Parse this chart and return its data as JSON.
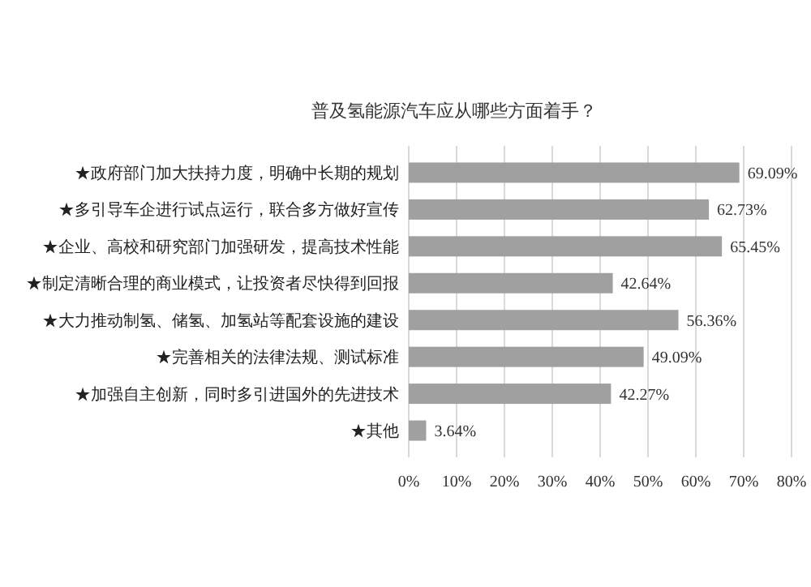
{
  "chart_data": {
    "type": "bar",
    "orientation": "horizontal",
    "title": "普及氢能源汽车应从哪些方面着手？",
    "categories": [
      "★政府部门加大扶持力度，明确中长期的规划",
      "★多引导车企进行试点运行，联合多方做好宣传",
      "★企业、高校和研究部门加强研发，提高技术性能",
      "★制定清晰合理的商业模式，让投资者尽快得到回报",
      "★大力推动制氢、储氢、加氢站等配套设施的建设",
      "★完善相关的法律法规、测试标准",
      "★加强自主创新，同时多引进国外的先进技术",
      "★其他"
    ],
    "values": [
      69.09,
      62.73,
      65.45,
      42.64,
      56.36,
      49.09,
      42.27,
      3.64
    ],
    "value_labels": [
      "69.09%",
      "62.73%",
      "65.45%",
      "42.64%",
      "56.36%",
      "49.09%",
      "42.27%",
      "3.64%"
    ],
    "color": "#a0a0a0",
    "xlim": [
      0,
      80
    ],
    "xticks": [
      {
        "value": 0,
        "label": "0%"
      },
      {
        "value": 10,
        "label": "10%"
      },
      {
        "value": 20,
        "label": "20%"
      },
      {
        "value": 30,
        "label": "30%"
      },
      {
        "value": 40,
        "label": "40%"
      },
      {
        "value": 50,
        "label": "50%"
      },
      {
        "value": 60,
        "label": "60%"
      },
      {
        "value": 70,
        "label": "70%"
      },
      {
        "value": 80,
        "label": "80%"
      }
    ],
    "grid": "x"
  }
}
